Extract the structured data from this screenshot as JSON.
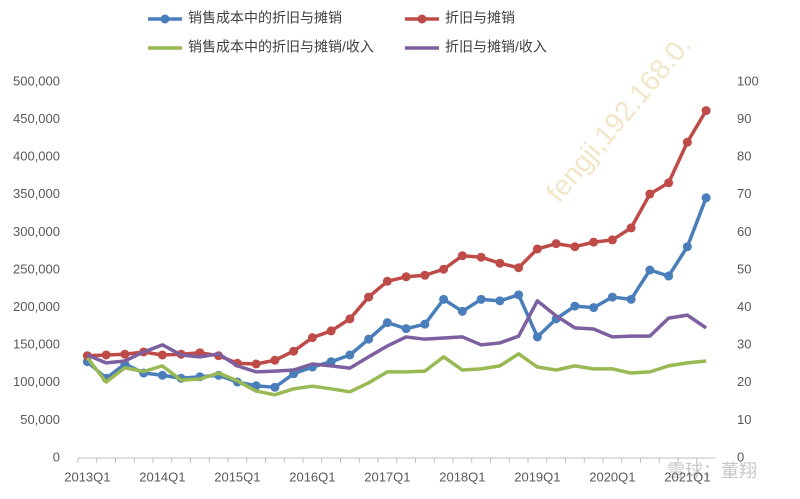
{
  "chart_data": {
    "type": "line",
    "categories": [
      "2013Q1",
      null,
      null,
      null,
      "2014Q1",
      null,
      null,
      null,
      "2015Q1",
      null,
      null,
      null,
      "2016Q1",
      null,
      null,
      null,
      "2017Q1",
      null,
      null,
      null,
      "2018Q1",
      null,
      null,
      null,
      "2019Q1",
      null,
      null,
      null,
      "2020Q1",
      null,
      null,
      null,
      "2021Q1",
      null
    ],
    "series": [
      {
        "name": "销售成本中的折旧与摊销",
        "color": "#4a7ebb",
        "marker": true,
        "values": [
          128000,
          106000,
          125000,
          113000,
          110000,
          106000,
          108000,
          110000,
          101000,
          96000,
          94000,
          112000,
          121000,
          128000,
          137000,
          158000,
          180000,
          172000,
          178000,
          211000,
          195000,
          211000,
          209000,
          217000,
          161000,
          185000,
          202000,
          200000,
          214000,
          211000,
          250000,
          242000,
          281000,
          346000
        ]
      },
      {
        "name": "折旧与摊销",
        "color": "#be4b48",
        "marker": true,
        "values": [
          136000,
          137000,
          138000,
          141000,
          137000,
          138000,
          140000,
          136000,
          126000,
          125000,
          130000,
          142000,
          160000,
          169000,
          185000,
          214000,
          235000,
          241000,
          243000,
          251000,
          269000,
          267000,
          259000,
          253000,
          278000,
          285000,
          281000,
          287000,
          290000,
          306000,
          351000,
          366000,
          420000,
          462000
        ]
      },
      {
        "name": "销售成本中的折旧与摊销/收入",
        "color": "#98b954",
        "marker": false,
        "axis": "y2",
        "values": [
          26.6,
          20.2,
          24,
          23,
          24.5,
          20.7,
          21,
          22.6,
          20.5,
          17.8,
          16.8,
          18.4,
          19.1,
          18.4,
          17.6,
          20,
          22.9,
          22.9,
          23.1,
          26.9,
          23.4,
          23.7,
          24.5,
          27.7,
          24.2,
          23.4,
          24.5,
          23.7,
          23.7,
          22.6,
          22.9,
          24.5,
          25.3,
          25.8
        ]
      },
      {
        "name": "折旧与摊销/收入",
        "color": "#7d60a0",
        "marker": false,
        "axis": "y2",
        "values": [
          27.4,
          25.3,
          25.8,
          28.2,
          30.1,
          27.4,
          26.9,
          27.7,
          24.5,
          22.9,
          23.1,
          23.4,
          25,
          24.5,
          23.9,
          26.9,
          29.8,
          32.2,
          31.6,
          31.9,
          32.2,
          30.1,
          30.6,
          32.4,
          41.8,
          37.8,
          34.6,
          34.3,
          32.2,
          32.4,
          32.4,
          37.2,
          38,
          34.6
        ]
      }
    ],
    "ylim": [
      0,
      500000
    ],
    "yticks": [
      {
        "value": 0,
        "label": "0"
      },
      {
        "value": 50000,
        "label": "50,000"
      },
      {
        "value": 100000,
        "label": "100,000"
      },
      {
        "value": 150000,
        "label": "150,000"
      },
      {
        "value": 200000,
        "label": "200,000"
      },
      {
        "value": 250000,
        "label": "250,000"
      },
      {
        "value": 300000,
        "label": "300,000"
      },
      {
        "value": 350000,
        "label": "350,000"
      },
      {
        "value": 400000,
        "label": "400,000"
      },
      {
        "value": 450000,
        "label": "450,000"
      },
      {
        "value": 500000,
        "label": "500,000"
      }
    ],
    "y2lim": [
      0,
      100
    ],
    "y2ticks": [
      0,
      10,
      20,
      30,
      40,
      50,
      60,
      70,
      80,
      90,
      100
    ],
    "legend": "top",
    "watermark": [
      "fengji,192.168.0.",
      "雪球：董翔"
    ]
  }
}
